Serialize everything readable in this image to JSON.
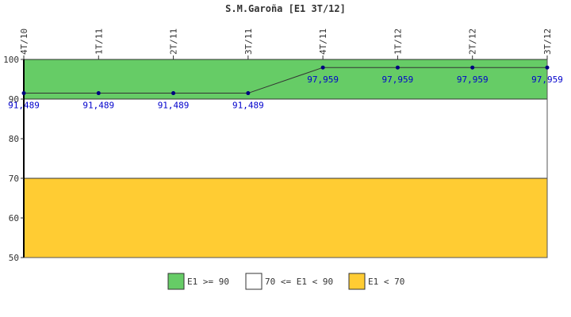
{
  "chart_data": {
    "type": "line",
    "title": "S.M.Garoña [E1 3T/12]",
    "categories": [
      "4T/10",
      "1T/11",
      "2T/11",
      "3T/11",
      "4T/11",
      "1T/12",
      "2T/12",
      "3T/12"
    ],
    "series": [
      {
        "values": [
          91.489,
          91.489,
          91.489,
          91.489,
          97.959,
          97.959,
          97.959,
          97.959
        ],
        "labels": [
          "91,489",
          "91,489",
          "91,489",
          "91,489",
          "97,959",
          "97,959",
          "97,959",
          "97,959"
        ],
        "color": "#000080",
        "line_color": "#333333"
      }
    ],
    "yticks": [
      "50",
      "60",
      "70",
      "80",
      "90",
      "100"
    ],
    "ylim": [
      50,
      100
    ],
    "bands": [
      {
        "from": 90,
        "to": 100,
        "color": "#66cc66",
        "label": "E1 >= 90"
      },
      {
        "from": 70,
        "to": 90,
        "color": "#ffffff",
        "label": "70 <= E1 < 90"
      },
      {
        "from": 50,
        "to": 70,
        "color": "#ffcc33",
        "label": "E1 < 70"
      }
    ],
    "legend_position": "bottom",
    "grid": false
  }
}
